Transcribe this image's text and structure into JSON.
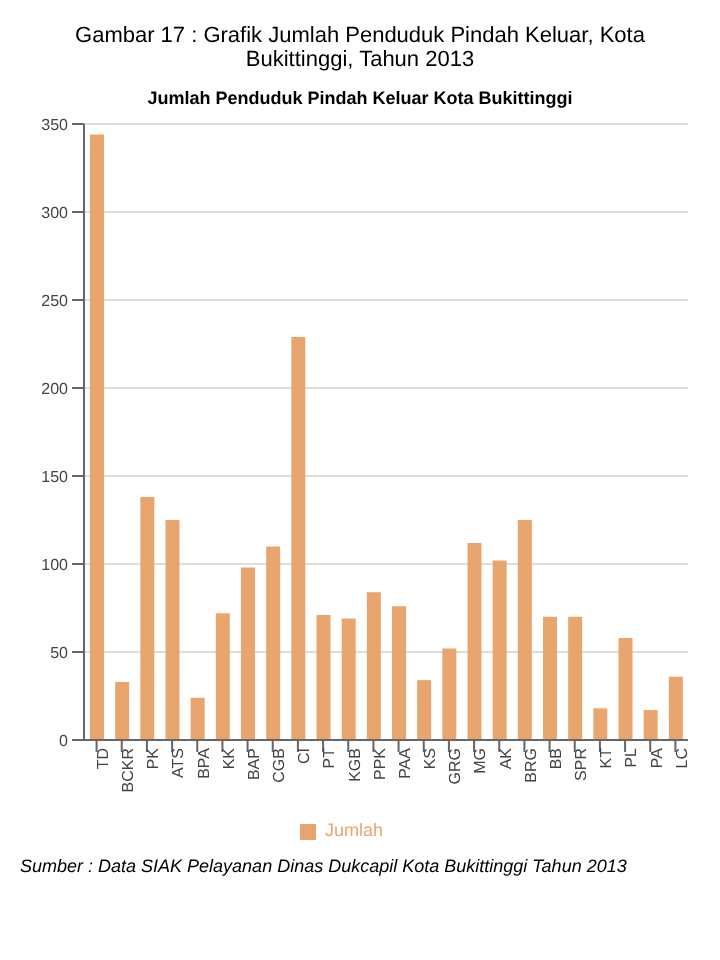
{
  "chart_data": {
    "type": "bar",
    "title": "Gambar 17 : Grafik Jumlah Penduduk Pindah Keluar, Kota Bukittinggi, Tahun 2013",
    "subtitle": "Jumlah Penduduk Pindah Keluar Kota Bukittinggi",
    "categories": [
      "TD",
      "BCKR",
      "PK",
      "ATS",
      "BPA",
      "KK",
      "BAP",
      "CGB",
      "CI",
      "PT",
      "KGB",
      "PPK",
      "PAA",
      "KS",
      "GRG",
      "MG",
      "AK",
      "BRG",
      "BB",
      "SPR",
      "KT",
      "PL",
      "PA",
      "LC"
    ],
    "series": [
      {
        "name": "Jumlah",
        "color": "#e8a66e",
        "values": [
          344,
          33,
          138,
          125,
          24,
          72,
          98,
          110,
          229,
          71,
          69,
          84,
          76,
          34,
          52,
          112,
          102,
          125,
          70,
          70,
          18,
          58,
          17,
          36
        ]
      }
    ],
    "ylim": [
      0,
      350
    ],
    "yticks": [
      0,
      50,
      100,
      150,
      200,
      250,
      300,
      350
    ],
    "grid": "y",
    "legend": "bottom",
    "annotations": [
      "Sumber : Data SIAK Pelayanan Dinas Dukcapil Kota Bukittinggi Tahun 2013"
    ]
  }
}
